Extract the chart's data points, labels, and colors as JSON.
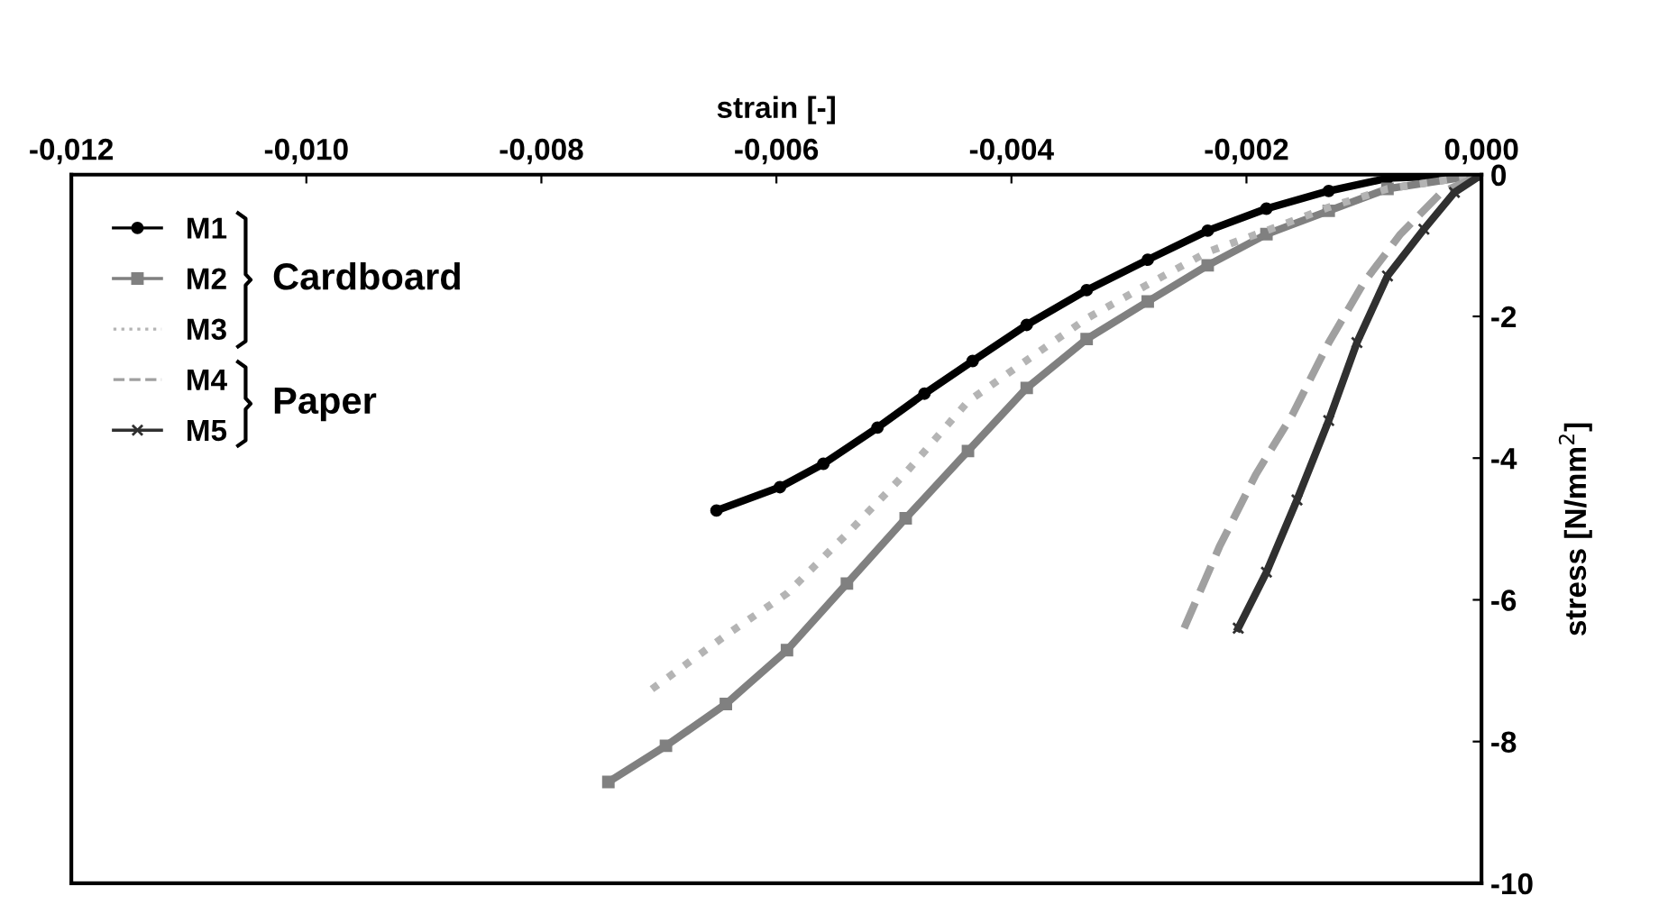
{
  "chart_data": {
    "type": "line",
    "xlabel": "strain [-]",
    "ylabel": "stress [N/mm$^{2}$]",
    "xlim": [
      -0.012,
      0
    ],
    "ylim": [
      -10,
      0
    ],
    "xticks": [
      {
        "value": -0.012,
        "label": "-0,012"
      },
      {
        "value": -0.01,
        "label": "-0,010"
      },
      {
        "value": -0.008,
        "label": "-0,008"
      },
      {
        "value": -0.006,
        "label": "-0,006"
      },
      {
        "value": -0.004,
        "label": "-0,004"
      },
      {
        "value": -0.002,
        "label": "-0,002"
      },
      {
        "value": 0,
        "label": "0,000"
      }
    ],
    "yticks": [
      0,
      -2,
      -4,
      -6,
      -8,
      -10
    ],
    "grid": false,
    "legend": "top left",
    "annotations": [
      "Cardboard",
      "Paper"
    ],
    "series": [
      {
        "name": "M1",
        "color": "#000000",
        "marker": "circle",
        "line_style": "solid",
        "x": [
          -0.00651,
          -0.00597,
          -0.0056,
          -0.00514,
          -0.00474,
          -0.00433,
          -0.00387,
          -0.00336,
          -0.00284,
          -0.00233,
          -0.00183,
          -0.0013,
          -0.0008,
          0
        ],
        "values": [
          -4.74,
          -4.41,
          -4.08,
          -3.57,
          -3.09,
          -2.63,
          -2.12,
          -1.63,
          -1.2,
          -0.79,
          -0.48,
          -0.23,
          -0.05,
          0
        ]
      },
      {
        "name": "M2",
        "color": "#808080",
        "marker": "square",
        "line_style": "solid",
        "x": [
          -0.00743,
          -0.00694,
          -0.00643,
          -0.00591,
          -0.0054,
          -0.0049,
          -0.00437,
          -0.00387,
          -0.00336,
          -0.00284,
          -0.00233,
          -0.00183,
          -0.0013,
          -0.0008,
          0
        ],
        "values": [
          -8.57,
          -8.06,
          -7.47,
          -6.71,
          -5.77,
          -4.85,
          -3.9,
          -3.01,
          -2.32,
          -1.79,
          -1.28,
          -0.84,
          -0.51,
          -0.2,
          0
        ]
      },
      {
        "name": "M3",
        "color": "#b4b4b4",
        "marker": "none",
        "line_style": "dotted",
        "x": [
          -0.00706,
          -0.00643,
          -0.00591,
          -0.0054,
          -0.0049,
          -0.00437,
          -0.00387,
          -0.00336,
          -0.00284,
          -0.00233,
          -0.00183,
          -0.0013,
          -0.0008,
          0
        ],
        "values": [
          -7.26,
          -6.5,
          -5.91,
          -5.07,
          -4.21,
          -3.2,
          -2.62,
          -2.03,
          -1.55,
          -1.09,
          -0.79,
          -0.46,
          -0.2,
          0
        ]
      },
      {
        "name": "M4",
        "color": "#a0a0a0",
        "marker": "none",
        "line_style": "dashed",
        "x": [
          -0.00253,
          -0.00223,
          -0.00192,
          -0.00161,
          -0.0013,
          -0.001,
          -0.00069,
          -0.00034,
          0
        ],
        "values": [
          -6.4,
          -5.25,
          -4.23,
          -3.39,
          -2.37,
          -1.52,
          -0.84,
          -0.25,
          0
        ]
      },
      {
        "name": "M5",
        "color": "#303030",
        "marker": "cross",
        "line_style": "solid",
        "x": [
          -0.00207,
          -0.00183,
          -0.00157,
          -0.0013,
          -0.00106,
          -0.0008,
          -0.00049,
          -0.00023,
          0
        ],
        "values": [
          -6.4,
          -5.61,
          -4.59,
          -3.47,
          -2.37,
          -1.43,
          -0.77,
          -0.25,
          0
        ]
      }
    ]
  }
}
